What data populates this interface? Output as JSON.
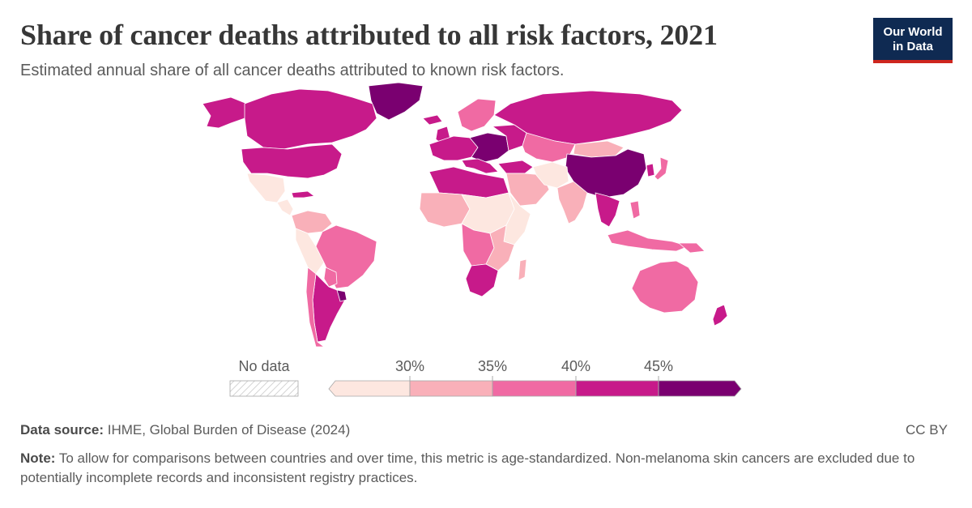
{
  "header": {
    "title": "Share of cancer deaths attributed to all risk factors, 2021",
    "subtitle": "Estimated annual share of all cancer deaths attributed to known risk factors.",
    "logo_line1": "Our World",
    "logo_line2": "in Data"
  },
  "legend": {
    "no_data_label": "No data",
    "ticks": [
      "30%",
      "35%",
      "40%",
      "45%"
    ],
    "bin_colors": [
      "#fde7e0",
      "#f9b0b9",
      "#f06aa3",
      "#c71a8a",
      "#7a0070"
    ]
  },
  "colors": {
    "ocean": "#ffffff",
    "border": "#ffffff",
    "nodata": "#e8e8e8"
  },
  "footer": {
    "source_label": "Data source:",
    "source_text": "IHME, Global Burden of Disease (2024)",
    "license": "CC BY",
    "note_label": "Note:",
    "note_text": "To allow for comparisons between countries and over time, this metric is age-standardized. Non-melanoma skin cancers are excluded due to potentially incomplete records and inconsistent registry practices."
  }
}
